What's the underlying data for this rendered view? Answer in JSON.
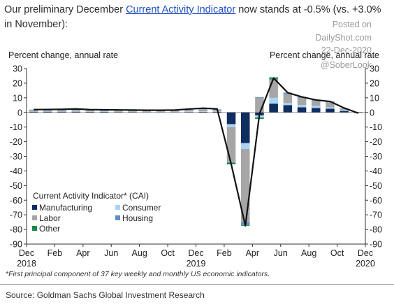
{
  "header": {
    "title_pre": "Our preliminary December ",
    "title_link": "Current Activity Indicator",
    "title_post": " now stands at -0.5% (vs. +3.0% in November):"
  },
  "watermark": {
    "line1": "Posted on",
    "line2": "DailyShot.com",
    "line3": "22-Dec-2020",
    "line4": "@SoberLook"
  },
  "chart_data": {
    "type": "bar",
    "stacked": true,
    "left_axis_label": "Percent change, annual rate",
    "right_axis_label": "Percent change, annual rate",
    "ylim": [
      -90,
      30
    ],
    "y_ticks": [
      30,
      20,
      10,
      0,
      -10,
      -20,
      -30,
      -40,
      -50,
      -60,
      -70,
      -80,
      -90
    ],
    "x_tick_labels": [
      {
        "month": "Dec",
        "year": "2018"
      },
      {
        "month": "Feb",
        "year": ""
      },
      {
        "month": "Apr",
        "year": ""
      },
      {
        "month": "Jun",
        "year": ""
      },
      {
        "month": "Aug",
        "year": ""
      },
      {
        "month": "Oct",
        "year": ""
      },
      {
        "month": "Dec",
        "year": "2019"
      },
      {
        "month": "Feb",
        "year": ""
      },
      {
        "month": "Apr",
        "year": ""
      },
      {
        "month": "Jun",
        "year": ""
      },
      {
        "month": "Aug",
        "year": ""
      },
      {
        "month": "Oct",
        "year": ""
      },
      {
        "month": "Dec",
        "year": "2020"
      }
    ],
    "legend_title": "Current Activity  Indicator* (CAI)",
    "legend_position": "bottom-left",
    "series": [
      {
        "name": "Manufacturing",
        "color": "#0f2d5e",
        "values": [
          0.5,
          0.5,
          0.5,
          0.5,
          0.4,
          0.4,
          0.3,
          0.3,
          0.2,
          0.2,
          0.2,
          0.3,
          0.4,
          0.4,
          -8,
          -21,
          -2,
          6,
          5,
          3.5,
          3,
          2.5,
          1,
          -0.3
        ]
      },
      {
        "name": "Consumer",
        "color": "#a9d4f5",
        "values": [
          0.4,
          0.4,
          0.4,
          0.4,
          0.3,
          0.3,
          0.3,
          0.3,
          0.3,
          0.3,
          0.3,
          0.4,
          0.4,
          0.3,
          -2,
          -4,
          -1.5,
          4,
          1.5,
          1.5,
          1.5,
          1,
          0.5,
          0
        ]
      },
      {
        "name": "Labor",
        "color": "#a6a6a6",
        "values": [
          0.9,
          1,
          1.1,
          1.4,
          1.1,
          1,
          1,
          0.9,
          0.9,
          0.9,
          1,
          1.5,
          2,
          1.3,
          -24,
          -50,
          10,
          12,
          6,
          5,
          3.5,
          3.5,
          1,
          -0.2
        ]
      },
      {
        "name": "Housing",
        "color": "#5f8fc4",
        "values": [
          0.1,
          0.1,
          0.1,
          0.1,
          0.1,
          0.1,
          0.1,
          0.1,
          0.1,
          0.1,
          0.1,
          0.1,
          0.1,
          0.1,
          -0.5,
          -2,
          0.5,
          1,
          1,
          0.6,
          0.5,
          0.5,
          0.2,
          0
        ]
      },
      {
        "name": "Other",
        "color": "#1a8a4a",
        "values": [
          0,
          0,
          0,
          0,
          0,
          0,
          0,
          0,
          0,
          0,
          0,
          0,
          0,
          0,
          -1,
          -0.5,
          -1,
          1,
          0,
          0,
          0,
          0,
          0,
          0
        ]
      }
    ],
    "cai_line": [
      1.9,
      2,
      2.1,
      2.4,
      1.9,
      1.8,
      1.7,
      1.6,
      1.5,
      1.5,
      1.6,
      2.3,
      2.9,
      2.4,
      -35.5,
      -77.5,
      -1,
      23.5,
      13.5,
      10.6,
      8.5,
      7.5,
      3,
      -0.5
    ]
  },
  "footnote": "*First principal component of 37 key weekly and monthly US economic indicators.",
  "source": "Source: Goldman Sachs Global Investment Research"
}
